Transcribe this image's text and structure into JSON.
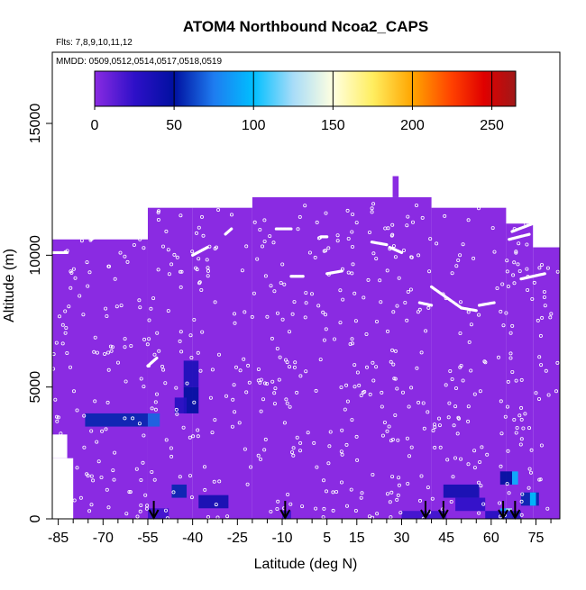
{
  "chart_data": {
    "type": "heatmap",
    "title": "ATOM4 Northbound Ncoa2_CAPS",
    "flights_note": "Flts: 7,8,9,10,11,12",
    "dates_note": "MMDD: 0509,0512,0514,0517,0518,0519",
    "xlabel": "Latitude (deg N)",
    "ylabel": "Altitude (m)",
    "xlim": [
      -87,
      83
    ],
    "ylim": [
      0,
      17700
    ],
    "x_ticks": [
      -85,
      -70,
      -55,
      -40,
      -25,
      -10,
      5,
      15,
      30,
      45,
      60,
      75
    ],
    "x_minor_ticks": [
      -80,
      -75,
      -65,
      -60,
      -50,
      -45,
      -35,
      -30,
      -20,
      -15,
      -5,
      0,
      10,
      20,
      25,
      35,
      40,
      50,
      55,
      65,
      70,
      80
    ],
    "y_ticks": [
      0,
      5000,
      10000,
      15000
    ],
    "colorbar": {
      "ticks": [
        0,
        50,
        100,
        150,
        200,
        250
      ],
      "range": [
        0,
        265
      ],
      "stops": [
        {
          "v": 0,
          "c": "#8a2be2"
        },
        {
          "v": 25,
          "c": "#2e10c8"
        },
        {
          "v": 50,
          "c": "#0010a0"
        },
        {
          "v": 75,
          "c": "#1e7cf0"
        },
        {
          "v": 100,
          "c": "#00bfff"
        },
        {
          "v": 125,
          "c": "#a8dcf8"
        },
        {
          "v": 150,
          "c": "#ffffe0"
        },
        {
          "v": 175,
          "c": "#ffee60"
        },
        {
          "v": 200,
          "c": "#ffa500"
        },
        {
          "v": 225,
          "c": "#ff4000"
        },
        {
          "v": 245,
          "c": "#e00000"
        },
        {
          "v": 265,
          "c": "#a01818"
        }
      ]
    },
    "background_color": "#8a2be2",
    "coverage_blocks": [
      {
        "x0": -87,
        "x1": -55,
        "y0": 0,
        "y1": 10600
      },
      {
        "x0": -55,
        "x1": -40,
        "y0": 0,
        "y1": 11800
      },
      {
        "x0": -40,
        "x1": -20,
        "y0": 0,
        "y1": 11800
      },
      {
        "x0": -20,
        "x1": 40,
        "y0": 0,
        "y1": 12200
      },
      {
        "x0": 40,
        "x1": 65,
        "y0": 0,
        "y1": 11800
      },
      {
        "x0": 65,
        "x1": 74,
        "y0": 0,
        "y1": 11200
      },
      {
        "x0": 74,
        "x1": 83,
        "y0": 0,
        "y1": 10300
      },
      {
        "x0": 27,
        "x1": 29,
        "y0": 12200,
        "y1": 13000
      }
    ],
    "blank_corners": [
      {
        "x0": -87,
        "x1": -80,
        "y0": 0,
        "y1": 2300
      },
      {
        "x0": -87,
        "x1": -82,
        "y0": 2300,
        "y1": 3200
      }
    ],
    "hotspots": [
      {
        "x0": -76,
        "x1": -55,
        "y0": 3500,
        "y1": 4000,
        "value": 55
      },
      {
        "x0": -55,
        "x1": -51,
        "y0": 3500,
        "y1": 4000,
        "value": 70
      },
      {
        "x0": -43,
        "x1": -38,
        "y0": 4000,
        "y1": 5000,
        "value": 50
      },
      {
        "x0": -43,
        "x1": -38,
        "y0": 5000,
        "y1": 6000,
        "value": 35
      },
      {
        "x0": -46,
        "x1": -42,
        "y0": 4000,
        "y1": 4600,
        "value": 30
      },
      {
        "x0": -47,
        "x1": -42,
        "y0": 800,
        "y1": 1300,
        "value": 55
      },
      {
        "x0": -38,
        "x1": -28,
        "y0": 400,
        "y1": 900,
        "value": 40
      },
      {
        "x0": -55,
        "x1": -48,
        "y0": 0,
        "y1": 400,
        "value": 20
      },
      {
        "x0": -10,
        "x1": -7,
        "y0": 0,
        "y1": 300,
        "value": 20
      },
      {
        "x0": 30,
        "x1": 45,
        "y0": 0,
        "y1": 300,
        "value": 20
      },
      {
        "x0": 44,
        "x1": 56,
        "y0": 800,
        "y1": 1300,
        "value": 40
      },
      {
        "x0": 48,
        "x1": 58,
        "y0": 300,
        "y1": 800,
        "value": 25
      },
      {
        "x0": 63,
        "x1": 67,
        "y0": 1300,
        "y1": 1800,
        "value": 50
      },
      {
        "x0": 67,
        "x1": 69,
        "y0": 1300,
        "y1": 1800,
        "value": 95
      },
      {
        "x0": 70,
        "x1": 76,
        "y0": 500,
        "y1": 1000,
        "value": 55
      },
      {
        "x0": 73,
        "x1": 75,
        "y0": 500,
        "y1": 1000,
        "value": 100
      },
      {
        "x0": 63,
        "x1": 66,
        "y0": 0,
        "y1": 400,
        "value": 90
      },
      {
        "x0": 65,
        "x1": 67,
        "y0": 0,
        "y1": 400,
        "value": 130
      },
      {
        "x0": 58,
        "x1": 70,
        "y0": 0,
        "y1": 300,
        "value": 30
      }
    ],
    "flight_tracks": [
      [
        [
          -87,
          10100
        ],
        [
          -82,
          10100
        ]
      ],
      [
        [
          -74,
          10600
        ],
        [
          -60,
          11400
        ]
      ],
      [
        [
          -40,
          10000
        ],
        [
          -35,
          10300
        ]
      ],
      [
        [
          -29,
          10800
        ],
        [
          -27,
          11000
        ]
      ],
      [
        [
          -12,
          11000
        ],
        [
          -7,
          11000
        ]
      ],
      [
        [
          3,
          10700
        ],
        [
          5,
          10700
        ]
      ],
      [
        [
          20,
          10500
        ],
        [
          25,
          10400
        ]
      ],
      [
        [
          26,
          10300
        ],
        [
          30,
          10100
        ]
      ],
      [
        [
          40,
          8800
        ],
        [
          50,
          8000
        ]
      ],
      [
        [
          36,
          8200
        ],
        [
          40,
          8100
        ]
      ],
      [
        [
          50,
          8000
        ],
        [
          55,
          7900
        ]
      ],
      [
        [
          56,
          8100
        ],
        [
          61,
          8200
        ]
      ],
      [
        [
          67,
          10900
        ],
        [
          74,
          11200
        ]
      ],
      [
        [
          66,
          10600
        ],
        [
          73,
          10800
        ]
      ],
      [
        [
          70,
          9100
        ],
        [
          78,
          9300
        ]
      ],
      [
        [
          5,
          9300
        ],
        [
          10,
          9400
        ]
      ],
      [
        [
          -7,
          9200
        ],
        [
          -3,
          9200
        ]
      ],
      [
        [
          -55,
          5800
        ],
        [
          -52,
          6100
        ]
      ]
    ],
    "profile_arrows": [
      -53,
      -9,
      38,
      44,
      64,
      68
    ]
  }
}
